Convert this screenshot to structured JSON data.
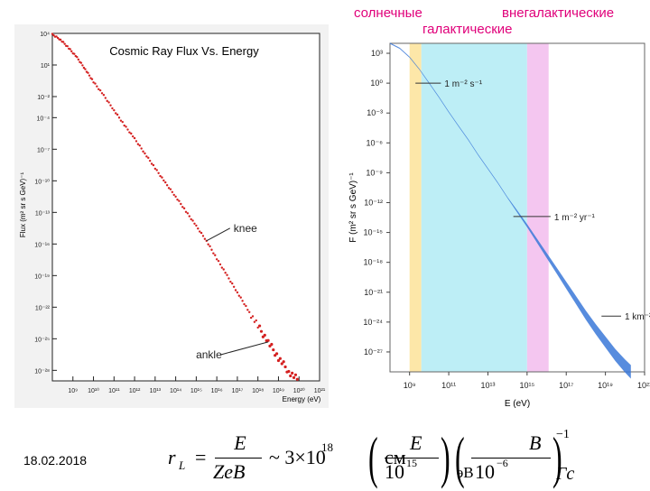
{
  "header_labels": {
    "solar": "солнечные",
    "extragalactic": "внегалактические",
    "galactic": "галактические"
  },
  "date": "18.02.2018",
  "chart_data": [
    {
      "type": "scatter",
      "title": "Cosmic Ray Flux Vs. Energy",
      "xlabel": "Energy (eV)",
      "ylabel": "Flux (m² sr s GeV)⁻¹",
      "xscale": "log",
      "yscale": "log",
      "xlim_exp": [
        8,
        21
      ],
      "ylim_exp": [
        -29,
        4
      ],
      "x_tick_labels": [
        "10⁹",
        "10¹⁰",
        "10¹¹",
        "10¹²",
        "10¹³",
        "10¹⁴",
        "10¹⁵",
        "10¹⁶",
        "10¹⁷",
        "10¹⁸",
        "10¹⁹",
        "10²⁰",
        "10²¹"
      ],
      "x_tick_exps": [
        9,
        10,
        11,
        12,
        13,
        14,
        15,
        16,
        17,
        18,
        19,
        20,
        21
      ],
      "y_tick_labels": [
        "10⁴",
        "10¹",
        "10⁻²",
        "10⁻⁴",
        "10⁻⁷",
        "10⁻¹⁰",
        "10⁻¹³",
        "10⁻¹⁶",
        "10⁻¹⁹",
        "10⁻²²",
        "10⁻²⁵",
        "10⁻²⁸"
      ],
      "y_tick_exps": [
        4,
        1,
        -2,
        -4,
        -7,
        -10,
        -13,
        -16,
        -19,
        -22,
        -25,
        -28
      ],
      "annotations": [
        {
          "text": "knee",
          "x_exp": 15.5
        },
        {
          "text": "ankle",
          "x_exp": 18.6
        }
      ],
      "series": [
        {
          "name": "flux",
          "color": "#d42020",
          "points_exp": [
            [
              8.0,
              3.9
            ],
            [
              8.4,
              3.4
            ],
            [
              8.8,
              2.6
            ],
            [
              9.2,
              1.7
            ],
            [
              9.6,
              0.6
            ],
            [
              10.0,
              -0.6
            ],
            [
              10.5,
              -1.9
            ],
            [
              11.0,
              -3.3
            ],
            [
              11.5,
              -4.7
            ],
            [
              12.0,
              -6.0
            ],
            [
              12.5,
              -7.4
            ],
            [
              13.0,
              -8.8
            ],
            [
              13.5,
              -10.2
            ],
            [
              14.0,
              -11.5
            ],
            [
              14.5,
              -12.9
            ],
            [
              15.0,
              -14.3
            ],
            [
              15.5,
              -15.7
            ],
            [
              16.0,
              -17.4
            ],
            [
              16.5,
              -19.0
            ],
            [
              17.0,
              -20.6
            ],
            [
              17.5,
              -22.2
            ],
            [
              18.0,
              -23.8
            ],
            [
              18.5,
              -25.3
            ],
            [
              19.0,
              -26.8
            ],
            [
              19.5,
              -28.1
            ],
            [
              20.0,
              -29.0
            ]
          ]
        }
      ]
    },
    {
      "type": "line",
      "xlabel": "E (eV)",
      "ylabel": "F (m² sr s GeV)⁻¹",
      "xscale": "log",
      "yscale": "log",
      "xlim_exp": [
        8,
        21
      ],
      "ylim_exp": [
        -29,
        4
      ],
      "x_tick_labels": [
        "10⁹",
        "10¹¹",
        "10¹³",
        "10¹⁵",
        "10¹⁷",
        "10¹⁹",
        "10²¹"
      ],
      "x_tick_exps": [
        9,
        11,
        13,
        15,
        17,
        19,
        21
      ],
      "y_tick_labels": [
        "10³",
        "10⁰",
        "10⁻³",
        "10⁻⁶",
        "10⁻⁹",
        "10⁻¹²",
        "10⁻¹⁵",
        "10⁻¹⁸",
        "10⁻²¹",
        "10⁻²⁴",
        "10⁻²⁷"
      ],
      "y_tick_exps": [
        3,
        0,
        -3,
        -6,
        -9,
        -12,
        -15,
        -18,
        -21,
        -24,
        -27
      ],
      "bands": [
        {
          "name": "солнечные",
          "from_exp": 9.0,
          "to_exp": 9.6,
          "color": "#fde7a8"
        },
        {
          "name": "галактические",
          "from_exp": 9.6,
          "to_exp": 15.0,
          "color": "#bdeef6"
        },
        {
          "name": "внегалактические",
          "from_exp": 15.0,
          "to_exp": 16.1,
          "color": "#f4c6f0"
        }
      ],
      "reference_lines": [
        {
          "text": "1 m⁻² s⁻¹",
          "y_exp": 0.0,
          "x_from_exp": 9.3,
          "x_to_exp": 10.6
        },
        {
          "text": "1 m⁻² yr⁻¹",
          "y_exp": -13.4,
          "x_from_exp": 14.3,
          "x_to_exp": 16.2
        },
        {
          "text": "1 km⁻² yr⁻¹",
          "y_exp": -23.4,
          "x_from_exp": 18.8,
          "x_to_exp": 19.8
        }
      ],
      "series": [
        {
          "name": "flux",
          "color": "#3a78d8",
          "points_exp": [
            [
              8.0,
              4.0
            ],
            [
              8.5,
              3.5
            ],
            [
              9.0,
              2.6
            ],
            [
              9.5,
              1.4
            ],
            [
              10.0,
              0.0
            ],
            [
              10.5,
              -1.4
            ],
            [
              11.0,
              -2.9
            ],
            [
              11.5,
              -4.3
            ],
            [
              12.0,
              -5.7
            ],
            [
              12.5,
              -7.2
            ],
            [
              13.0,
              -8.6
            ],
            [
              13.5,
              -10.0
            ],
            [
              14.0,
              -11.5
            ],
            [
              14.5,
              -12.9
            ],
            [
              15.0,
              -14.3
            ],
            [
              15.5,
              -15.8
            ],
            [
              16.0,
              -17.3
            ],
            [
              16.5,
              -18.8
            ],
            [
              17.0,
              -20.3
            ],
            [
              17.5,
              -21.8
            ],
            [
              18.0,
              -23.3
            ],
            [
              18.5,
              -24.7
            ],
            [
              19.0,
              -26.0
            ],
            [
              19.5,
              -27.3
            ],
            [
              20.0,
              -28.4
            ],
            [
              20.3,
              -29.0
            ]
          ]
        }
      ]
    }
  ],
  "formula": {
    "lhs": "r",
    "lhs_sub": "L",
    "equals": "=",
    "num": "E",
    "den": "ZeB",
    "approx": "~ 3×10",
    "exp": "18",
    "paren1_num": "E",
    "paren1_den": "10",
    "paren1_den_exp": "15",
    "unit1": "см",
    "paren2_num": "B",
    "paren2_den": "10",
    "paren2_den_exp": "−6",
    "unit2_a": "эВ",
    "unit2_b": "Гс",
    "outer_exp": "−1"
  }
}
